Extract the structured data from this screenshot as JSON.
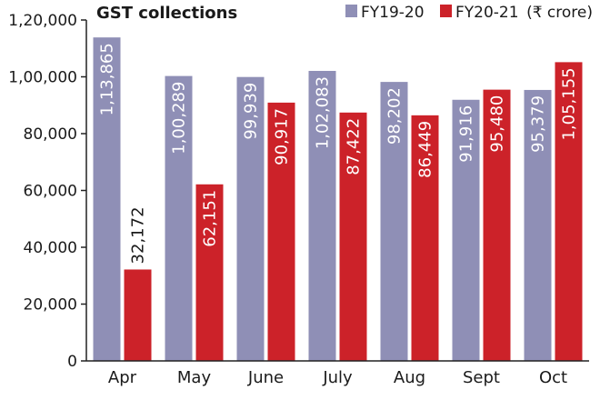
{
  "chart_data": {
    "type": "bar",
    "title": "GST collections",
    "unit_note": "(₹ crore)",
    "categories": [
      "Apr",
      "May",
      "June",
      "July",
      "Aug",
      "Sept",
      "Oct"
    ],
    "series": [
      {
        "name": "FY19-20",
        "color": "#8f8fb6",
        "values": [
          113865,
          100289,
          99939,
          102083,
          98202,
          91916,
          95379
        ],
        "labels": [
          "1,13,865",
          "1,00,289",
          "99,939",
          "1,02,083",
          "98,202",
          "91,916",
          "95,379"
        ]
      },
      {
        "name": "FY20-21",
        "color": "#cc2229",
        "values": [
          32172,
          62151,
          90917,
          87422,
          86449,
          95480,
          105155
        ],
        "labels": [
          "32,172",
          "62,151",
          "90,917",
          "87,422",
          "86,449",
          "95,480",
          "1,05,155"
        ]
      }
    ],
    "ylim": [
      0,
      120000
    ],
    "yticks": [
      0,
      20000,
      40000,
      60000,
      80000,
      100000,
      120000
    ],
    "ytick_labels": [
      "0",
      "20,000",
      "40,000",
      "60,000",
      "80,000",
      "1,00,000",
      "1,20,000"
    ],
    "legend_position": "top-right",
    "grid": false
  }
}
